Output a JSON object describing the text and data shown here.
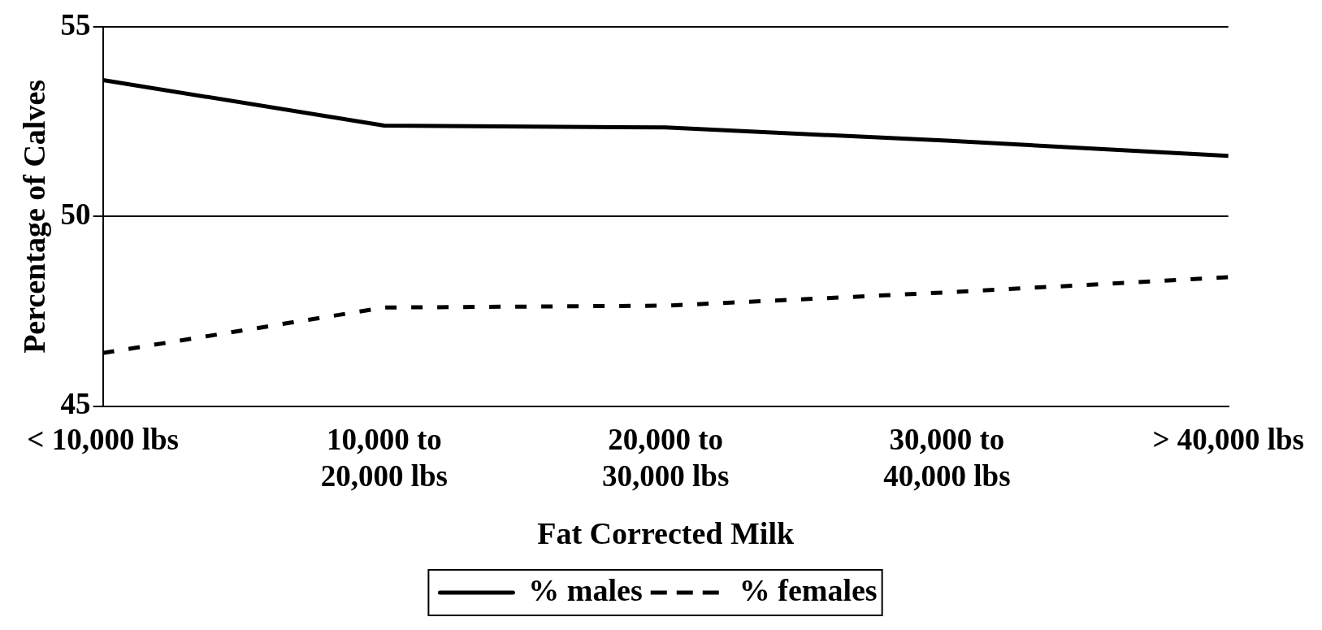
{
  "chart_data": {
    "type": "line",
    "xlabel": "Fat Corrected Milk",
    "ylabel": "Percentage of Calves",
    "categories": [
      "< 10,000 lbs",
      "10,000 to\n20,000 lbs",
      "20,000 to\n30,000 lbs",
      "30,000 to\n40,000 lbs",
      "> 40,000 lbs"
    ],
    "series": [
      {
        "name": "% males",
        "color": "#000000",
        "values": [
          53.6,
          52.4,
          52.35,
          52.0,
          51.6
        ],
        "line_style": "solid"
      },
      {
        "name": "% females",
        "color": "#000000",
        "values": [
          46.4,
          47.6,
          47.65,
          48.0,
          48.4
        ],
        "line_style": "dashed"
      }
    ],
    "ylim": [
      45,
      55
    ],
    "yticks": [
      45,
      50,
      55
    ],
    "grid": "y",
    "legend": "bottom",
    "marker": "none"
  }
}
